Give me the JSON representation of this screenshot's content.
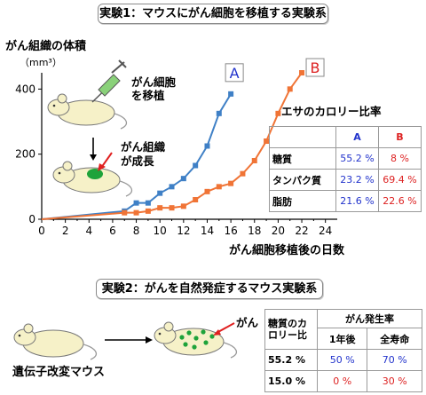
{
  "exp1": {
    "title": "実験1：マウスにがん細胞を移植する実験系",
    "labels": {
      "transplant": [
        "がん細胞",
        "を移植"
      ],
      "growth": [
        "がん組織",
        "が成長"
      ]
    }
  },
  "exp2": {
    "title": "実験2：がんを自然発症するマウス実験系",
    "gm_mouse": "遺伝子改変マウス",
    "cancer": "がん"
  },
  "diet_table": {
    "title": "エサのカロリー比率",
    "col_a": "A",
    "col_b": "B",
    "rows": [
      {
        "name": "糖質",
        "a": "55.2 %",
        "b": "8 %"
      },
      {
        "name": "タンパク質",
        "a": "23.2 %",
        "b": "69.4 %"
      },
      {
        "name": "脂肪",
        "a": "21.6 %",
        "b": "22.6 %"
      }
    ]
  },
  "incidence_table": {
    "header_ratio": [
      "糖質のカ",
      "ロリー比"
    ],
    "header_rate": "がん発生率",
    "col_1y": "1年後",
    "col_life": "全寿命",
    "rows": [
      {
        "ratio": "55.2 %",
        "y1": "50 %",
        "life": "70 %"
      },
      {
        "ratio": "15.0 %",
        "y1": "0 %",
        "life": "30 %"
      }
    ]
  },
  "chart_data": {
    "type": "line",
    "ylabel": "がん組織の体積",
    "yunit": "（mm³）",
    "xlabel": "がん細胞移植後の日数",
    "xlim": [
      0,
      25
    ],
    "ylim": [
      0,
      450
    ],
    "xticks": [
      0,
      2,
      4,
      6,
      8,
      10,
      12,
      14,
      16,
      18,
      20,
      22,
      24
    ],
    "yticks": [
      0,
      200,
      400
    ],
    "series": [
      {
        "name": "A",
        "color": "#3f80c6",
        "x": [
          0,
          7,
          8,
          9,
          10,
          11,
          12,
          13,
          14,
          15,
          16
        ],
        "y": [
          0,
          25,
          50,
          50,
          80,
          100,
          125,
          165,
          225,
          325,
          385
        ]
      },
      {
        "name": "B",
        "color": "#f07436",
        "x": [
          0,
          7,
          8,
          9,
          10,
          11,
          12,
          13,
          14,
          15,
          16,
          17,
          18,
          19,
          20,
          21,
          22
        ],
        "y": [
          0,
          20,
          20,
          25,
          35,
          35,
          40,
          60,
          85,
          100,
          110,
          140,
          180,
          240,
          325,
          400,
          450
        ]
      }
    ]
  }
}
